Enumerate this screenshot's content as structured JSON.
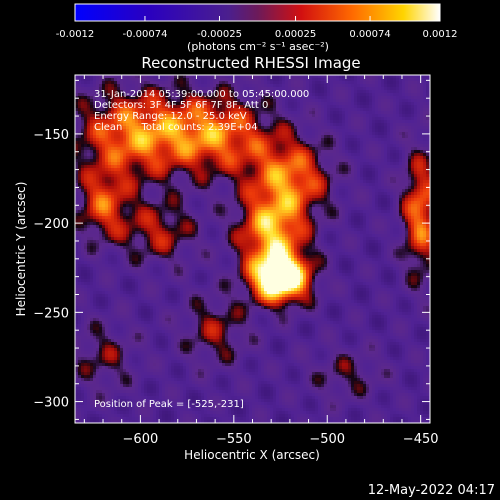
{
  "colorbar": {
    "tick_labels": [
      "-0.0012",
      "-0.00074",
      "-0.00025",
      "0.00025",
      "0.00074",
      "0.0012"
    ],
    "tick_values": [
      -0.0012,
      -0.00074,
      -0.00025,
      0.00025,
      0.00074,
      0.0012
    ],
    "range": [
      -0.0012,
      0.0012
    ],
    "units": "(photons cm⁻² s⁻¹ asec⁻²)"
  },
  "chart_data": {
    "type": "heatmap",
    "title": "Reconstructed RHESSI Image",
    "xlabel": "Heliocentric X (arcsec)",
    "ylabel": "Heliocentric Y (arcsec)",
    "xlim": [
      -635,
      -445
    ],
    "ylim": [
      -312,
      -117
    ],
    "x_ticks": [
      -600,
      -550,
      -500,
      -450
    ],
    "x_tick_labels": [
      "−600",
      "−550",
      "−500",
      "−450"
    ],
    "y_ticks": [
      -150,
      -200,
      -250,
      -300
    ],
    "y_tick_labels": [
      "−150",
      "−200",
      "−250",
      "−300"
    ],
    "peak": {
      "x": -525,
      "y": -231
    },
    "colormap": "blue-purple-red-yellow-white (RHESSI standard)",
    "background_color": "#5a2493",
    "annotations": [
      "31-Jan-2014 05:39:00.000 to 05:45:00.000",
      "Detectors: 3F 4F 5F 6F 7F 8F, Att 0",
      "Energy Range: 12.0 - 25.0 keV",
      "Clean      Total counts: 2.39E+04",
      "Position of Peak = [-525,-231]"
    ]
  },
  "footer": {
    "timestamp": "12-May-2022 04:17"
  }
}
